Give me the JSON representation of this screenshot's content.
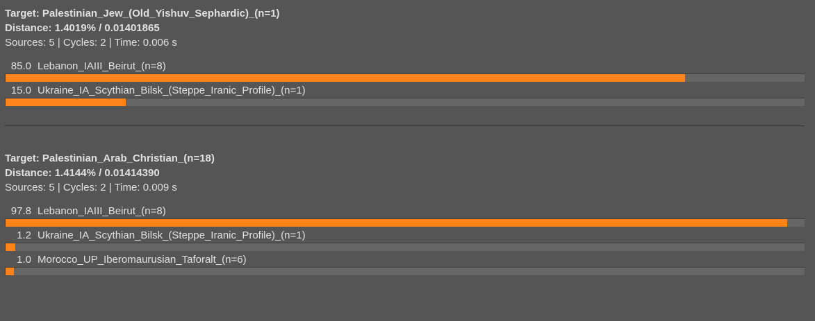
{
  "colors": {
    "bar": "#ff841b",
    "track": "#666666",
    "background": "#555555"
  },
  "results": [
    {
      "target": "Target: Palestinian_Jew_(Old_Yishuv_Sephardic)_(n=1)",
      "distance": "Distance: 1.4019% / 0.01401865",
      "stats": "Sources: 5 | Cycles: 2 | Time: 0.006 s",
      "items": [
        {
          "value": "85.0",
          "label": "Lebanon_IAIII_Beirut_(n=8)",
          "percent": 85.0
        },
        {
          "value": "15.0",
          "label": "Ukraine_IA_Scythian_Bilsk_(Steppe_Iranic_Profile)_(n=1)",
          "percent": 15.0
        }
      ]
    },
    {
      "target": "Target: Palestinian_Arab_Christian_(n=18)",
      "distance": "Distance: 1.4144% / 0.01414390",
      "stats": "Sources: 5 | Cycles: 2 | Time: 0.009 s",
      "items": [
        {
          "value": "97.8",
          "label": "Lebanon_IAIII_Beirut_(n=8)",
          "percent": 97.8
        },
        {
          "value": "1.2",
          "label": "Ukraine_IA_Scythian_Bilsk_(Steppe_Iranic_Profile)_(n=1)",
          "percent": 1.2
        },
        {
          "value": "1.0",
          "label": "Morocco_UP_Iberomaurusian_Taforalt_(n=6)",
          "percent": 1.0
        }
      ]
    }
  ]
}
